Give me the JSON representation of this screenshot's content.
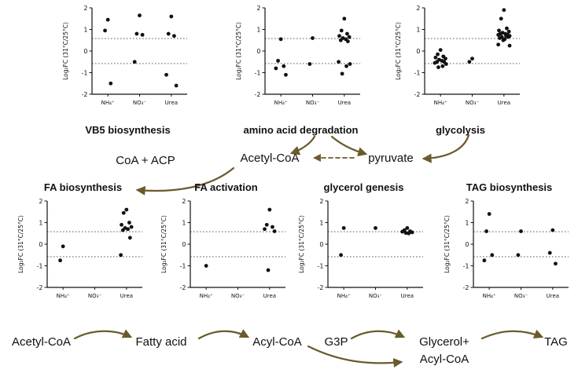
{
  "figure": {
    "ylabel": "Log₂FC (31°C/25°C)",
    "ylim": [
      -2,
      2
    ],
    "yticks": [
      -2,
      -1,
      0,
      1,
      2
    ],
    "thresholds": [
      0.58,
      -0.58
    ],
    "categories": [
      "NH₄⁺",
      "NO₃⁻",
      "Urea"
    ],
    "accent_color": "#6b5b2b",
    "point_color": "#111111"
  },
  "chart_data": [
    {
      "type": "scatter",
      "title": "VB5 biosynthesis",
      "categories": [
        "NH₄⁺",
        "NO₃⁻",
        "Urea"
      ],
      "ylim": [
        -2,
        2
      ],
      "series": [
        {
          "name": "NH4+",
          "values": [
            1.45,
            0.95,
            -1.5
          ]
        },
        {
          "name": "NO3-",
          "values": [
            1.65,
            0.8,
            0.75,
            -0.5
          ]
        },
        {
          "name": "Urea",
          "values": [
            1.6,
            0.8,
            0.7,
            -1.1,
            -1.6
          ]
        }
      ]
    },
    {
      "type": "scatter",
      "title": "amino acid degradation",
      "categories": [
        "NH₄⁺",
        "NO₃⁻",
        "Urea"
      ],
      "ylim": [
        -2,
        2
      ],
      "series": [
        {
          "name": "NH4+",
          "values": [
            0.55,
            -0.45,
            -0.7,
            -0.8,
            -1.1
          ]
        },
        {
          "name": "NO3-",
          "values": [
            0.6,
            -0.6
          ]
        },
        {
          "name": "Urea",
          "values": [
            1.5,
            0.95,
            0.8,
            0.7,
            0.65,
            0.6,
            0.55,
            0.5,
            0.45,
            -0.5,
            -0.6,
            -0.7,
            -1.05
          ]
        }
      ]
    },
    {
      "type": "scatter",
      "title": "glycolysis",
      "categories": [
        "NH₄⁺",
        "NO₃⁻",
        "Urea"
      ],
      "ylim": [
        -2,
        2
      ],
      "series": [
        {
          "name": "NH4+",
          "values": [
            0.05,
            -0.15,
            -0.25,
            -0.3,
            -0.35,
            -0.4,
            -0.45,
            -0.5,
            -0.5,
            -0.55,
            -0.6,
            -0.7,
            -0.75
          ]
        },
        {
          "name": "NO3-",
          "values": [
            -0.35,
            -0.5
          ]
        },
        {
          "name": "Urea",
          "values": [
            1.9,
            1.5,
            1.05,
            0.95,
            0.9,
            0.85,
            0.8,
            0.8,
            0.75,
            0.75,
            0.7,
            0.7,
            0.65,
            0.65,
            0.6,
            0.55,
            0.5,
            0.3,
            0.25
          ]
        }
      ]
    },
    {
      "type": "scatter",
      "title": "FA biosynthesis",
      "categories": [
        "NH₄⁺",
        "NO₃⁻",
        "Urea"
      ],
      "ylim": [
        -2,
        2
      ],
      "series": [
        {
          "name": "NH4+",
          "values": [
            -0.1,
            -0.75
          ]
        },
        {
          "name": "NO3-",
          "values": []
        },
        {
          "name": "Urea",
          "values": [
            1.6,
            1.45,
            1.0,
            0.9,
            0.8,
            0.75,
            0.7,
            0.65,
            0.3,
            -0.5
          ]
        }
      ]
    },
    {
      "type": "scatter",
      "title": "FA activation",
      "categories": [
        "NH₄⁺",
        "NO₃⁻",
        "Urea"
      ],
      "ylim": [
        -2,
        2
      ],
      "series": [
        {
          "name": "NH4+",
          "values": [
            -1.0
          ]
        },
        {
          "name": "NO3-",
          "values": []
        },
        {
          "name": "Urea",
          "values": [
            1.6,
            0.9,
            0.8,
            0.7,
            0.6,
            -1.2
          ]
        }
      ]
    },
    {
      "type": "scatter",
      "title": "glycerol genesis",
      "categories": [
        "NH₄⁺",
        "NO₃⁻",
        "Urea"
      ],
      "ylim": [
        -2,
        2
      ],
      "series": [
        {
          "name": "NH4+",
          "values": [
            0.75,
            -0.5
          ]
        },
        {
          "name": "NO3-",
          "values": [
            0.75
          ]
        },
        {
          "name": "Urea",
          "values": [
            0.75,
            0.65,
            0.6,
            0.58,
            0.55,
            0.52,
            0.5
          ]
        }
      ]
    },
    {
      "type": "scatter",
      "title": "TAG biosynthesis",
      "categories": [
        "NH₄⁺",
        "NO₃⁻",
        "Urea"
      ],
      "ylim": [
        -2,
        2
      ],
      "series": [
        {
          "name": "NH4+",
          "values": [
            1.4,
            0.6,
            -0.5,
            -0.75
          ]
        },
        {
          "name": "NO3-",
          "values": [
            0.6,
            -0.5
          ]
        },
        {
          "name": "Urea",
          "values": [
            0.65,
            -0.4,
            -0.9
          ]
        }
      ]
    }
  ],
  "labels": {
    "coa_acp": "CoA + ACP",
    "acetyl_coa_mid": "Acetyl-CoA",
    "pyruvate": "pyruvate",
    "acetyl_coa_bottom": "Acetyl-CoA",
    "fatty_acid": "Fatty acid",
    "acyl_coa": "Acyl-CoA",
    "g3p": "G3P",
    "glycerol_plus": "Glycerol+",
    "acyl_coa_2": "Acyl-CoA",
    "tag": "TAG"
  }
}
